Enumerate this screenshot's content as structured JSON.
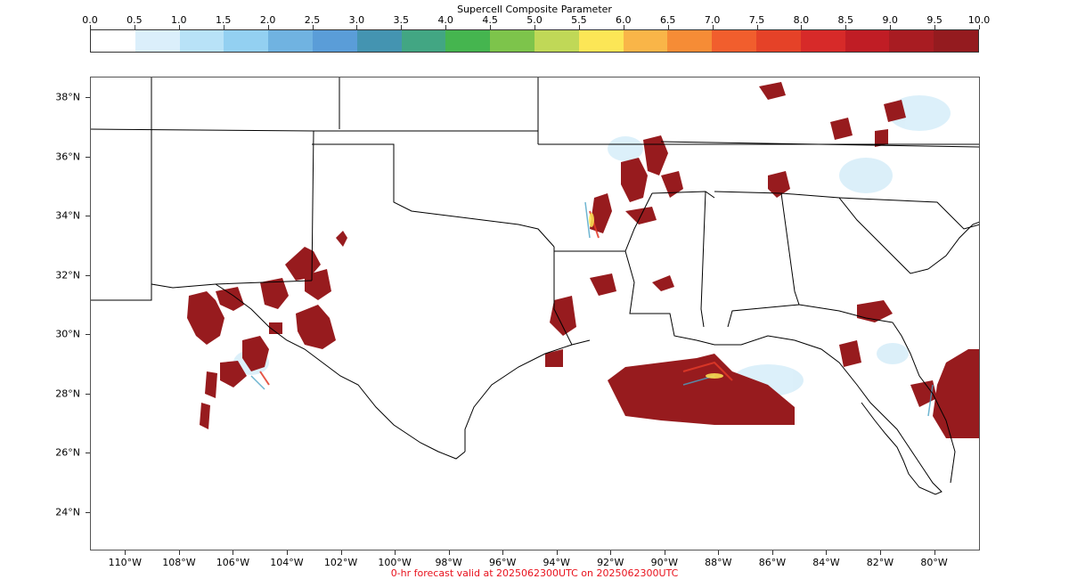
{
  "colorbar": {
    "title": "Supercell Composite Parameter",
    "ticks": [
      "0.0",
      "0.5",
      "1.0",
      "1.5",
      "2.0",
      "2.5",
      "3.0",
      "3.5",
      "4.0",
      "4.5",
      "5.0",
      "5.5",
      "6.0",
      "6.5",
      "7.0",
      "7.5",
      "8.0",
      "8.5",
      "9.0",
      "9.5",
      "10.0"
    ],
    "colors": [
      "#ffffff",
      "#dbeffb",
      "#b8e2f7",
      "#93d0f1",
      "#70b3e1",
      "#5a9dd8",
      "#4494b1",
      "#42a683",
      "#45b54f",
      "#7dc44b",
      "#c0d857",
      "#fce656",
      "#f9b548",
      "#f68c36",
      "#f15e2d",
      "#e54228",
      "#d72a29",
      "#c01d25",
      "#a81c22",
      "#941b1f"
    ]
  },
  "map": {
    "lat_labels": [
      "38°N",
      "36°N",
      "34°N",
      "32°N",
      "30°N",
      "28°N",
      "26°N",
      "24°N"
    ],
    "lon_labels": [
      "110°W",
      "108°W",
      "106°W",
      "104°W",
      "102°W",
      "100°W",
      "98°W",
      "96°W",
      "94°W",
      "92°W",
      "90°W",
      "88°W",
      "86°W",
      "84°W",
      "82°W",
      "80°W"
    ],
    "extent": {
      "lon_min": -111.3,
      "lon_max": -78.3,
      "lat_min": 22.7,
      "lat_max": 38.7
    },
    "field_colors": {
      "low": "#cfe9f7",
      "mid": "#4aa3c6",
      "high": "#971b1e",
      "edge": "#e23a28"
    }
  },
  "caption": "0-hr forecast valid at 2025062300UTC on 2025062300UTC"
}
